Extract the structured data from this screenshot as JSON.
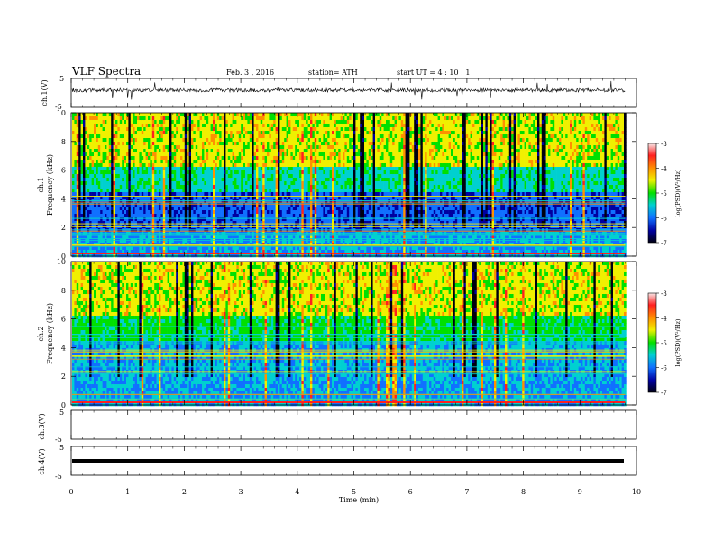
{
  "header": {
    "title": "VLF  Spectra",
    "date": "Feb. 3  , 2016",
    "station": "station= ATH",
    "start": "start  UT  =   4  : 10 : 1"
  },
  "xaxis": {
    "label": "Time  (min)",
    "ticks": [
      "0",
      "1",
      "2",
      "3",
      "4",
      "5",
      "6",
      "7",
      "8",
      "9",
      "10"
    ],
    "range": [
      0,
      10
    ]
  },
  "panels": {
    "ch1_wave": {
      "label": "ch.1(V)",
      "top_tick": "5",
      "bottom_tick": "-5"
    },
    "ch1_spec": {
      "label_line1": "ch.1",
      "label_line2": "Frequency  (kHz)",
      "yticks": [
        "0",
        "2",
        "4",
        "6",
        "8",
        "10"
      ]
    },
    "ch2_spec": {
      "label_line1": "ch.2",
      "label_line2": "Frequency  (kHz)",
      "yticks": [
        "0",
        "2",
        "4",
        "6",
        "8",
        "10"
      ]
    },
    "ch3_wave": {
      "label": "ch.3(V)",
      "top_tick": "5",
      "bottom_tick": "-5"
    },
    "ch4_wave": {
      "label": "ch.4(V)",
      "top_tick": "5",
      "bottom_tick": "-5"
    }
  },
  "colorbar": {
    "label": "log(PSD)(V²/Hz)",
    "ticks": [
      "-3",
      "-4",
      "-5",
      "-6",
      "-7"
    ],
    "colors": [
      "#f8e8e8",
      "#ff2020",
      "#ff9000",
      "#f0f000",
      "#00e000",
      "#00d0d0",
      "#1070ff",
      "#0000a0",
      "#000010"
    ]
  },
  "chart_data": {
    "type": "heatmap",
    "title": "VLF  Spectra",
    "xlabel": "Time  (min)",
    "xlim": [
      0,
      10
    ],
    "data_extent_min": 9.8,
    "ylabel": "Frequency  (kHz)",
    "ylim": [
      0,
      10
    ],
    "colorbar_range": [
      -7,
      -3
    ],
    "panels": [
      "ch.1(V)",
      "ch.1 spectrogram",
      "ch.2 spectrogram",
      "ch.3(V)",
      "ch.4(V)"
    ],
    "waveform_ylim": [
      -5,
      5
    ]
  }
}
